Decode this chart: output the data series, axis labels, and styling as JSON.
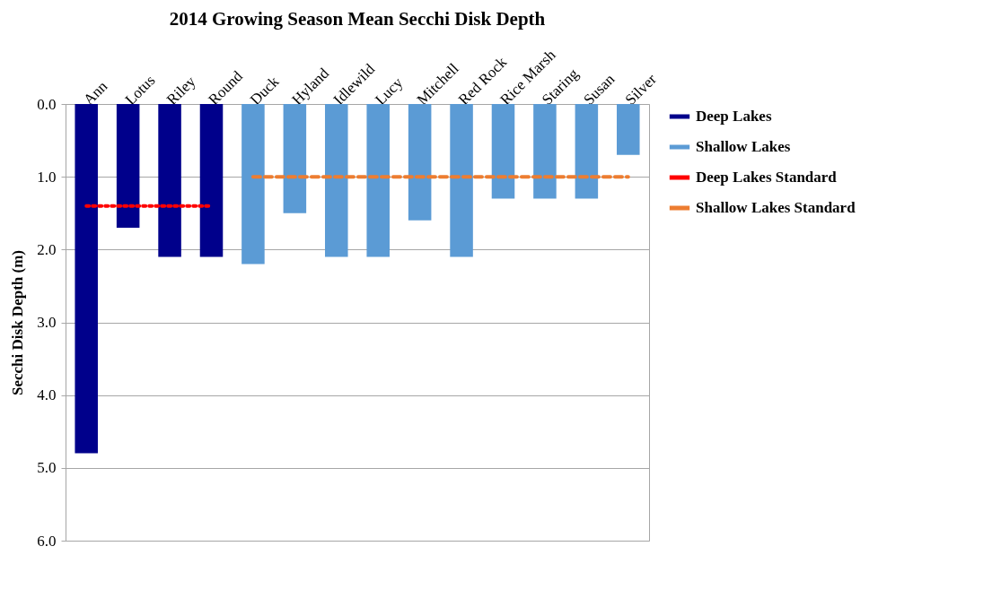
{
  "chart_data": {
    "type": "bar",
    "title": "2014 Growing  Season Mean Secchi Disk Depth",
    "ylabel": "Secchi Disk Depth (m)",
    "categories": [
      "Ann",
      "Lotus",
      "Riley",
      "Round",
      "Duck",
      "Hyland",
      "Idlewild",
      "Lucy",
      "Mitchell",
      "Red Rock",
      "Rice Marsh",
      "Staring",
      "Susan",
      "Silver"
    ],
    "series": [
      {
        "name": "Deep Lakes",
        "color": "#00008b",
        "values": [
          4.8,
          1.7,
          2.1,
          2.1,
          null,
          null,
          null,
          null,
          null,
          null,
          null,
          null,
          null,
          null
        ]
      },
      {
        "name": "Shallow Lakes",
        "color": "#5b9bd5",
        "values": [
          null,
          null,
          null,
          null,
          2.2,
          1.5,
          2.1,
          2.1,
          1.6,
          2.1,
          1.3,
          1.3,
          1.3,
          0.7
        ]
      },
      {
        "name": "Deep Lakes Standard",
        "type": "line",
        "color": "#ff0000",
        "line_style": "dotted",
        "x": [
          "Ann",
          "Lotus",
          "Riley",
          "Round"
        ],
        "values": [
          1.4,
          1.4,
          1.4,
          1.4
        ]
      },
      {
        "name": "Shallow Lakes Standard",
        "type": "line",
        "color": "#ed7d31",
        "line_style": "dashed",
        "x": [
          "Duck",
          "Hyland",
          "Idlewild",
          "Lucy",
          "Mitchell",
          "Red Rock",
          "Rice Marsh",
          "Staring",
          "Susan",
          "Silver"
        ],
        "values": [
          1,
          1,
          1,
          1,
          1,
          1,
          1,
          1,
          1,
          1
        ]
      }
    ],
    "ylim": [
      6,
      0
    ],
    "yticks": [
      {
        "value": 0,
        "label": "0.0"
      },
      {
        "value": 1,
        "label": "1.0"
      },
      {
        "value": 2,
        "label": "2.0"
      },
      {
        "value": 3,
        "label": "3.0"
      },
      {
        "value": 4,
        "label": "4.0"
      },
      {
        "value": 5,
        "label": "5.0"
      },
      {
        "value": 6,
        "label": "6.0"
      }
    ],
    "grid": "y",
    "legend": "right",
    "marker": "none"
  }
}
